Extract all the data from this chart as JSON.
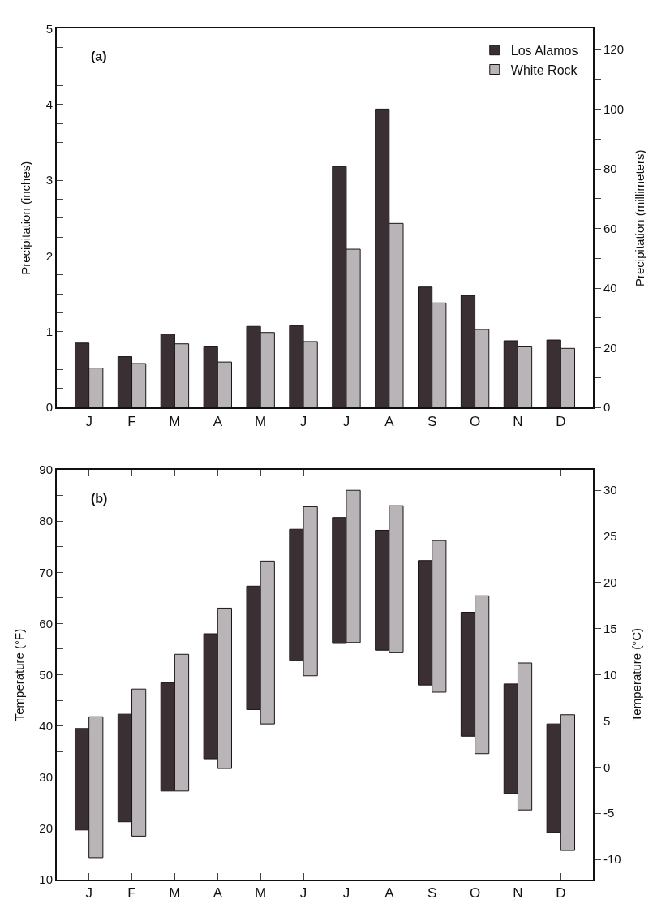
{
  "chart_data": [
    {
      "type": "bar",
      "title": "(a)",
      "ylabel": "Precipitation (inches)",
      "y2label": "Precipitation (millimeters)",
      "categories": [
        "J",
        "F",
        "M",
        "A",
        "M",
        "J",
        "J",
        "A",
        "S",
        "O",
        "N",
        "D"
      ],
      "series": [
        {
          "name": "Los Alamos",
          "color": "#3a3034",
          "values": [
            0.85,
            0.67,
            0.97,
            0.8,
            1.07,
            1.08,
            3.18,
            3.94,
            1.59,
            1.48,
            0.88,
            0.89
          ]
        },
        {
          "name": "White Rock",
          "color": "#b8b4b8",
          "values": [
            0.52,
            0.58,
            0.84,
            0.6,
            0.99,
            0.87,
            2.09,
            2.43,
            1.38,
            1.03,
            0.8,
            0.78
          ]
        }
      ],
      "ylim": [
        0,
        5
      ],
      "yticks": [
        0,
        {
          "value": 0.25,
          "label": null
        },
        {
          "value": 0.5,
          "label": null
        },
        {
          "value": 0.75,
          "label": null
        },
        1,
        {
          "value": 1.25,
          "label": null
        },
        {
          "value": 1.5,
          "label": null
        },
        {
          "value": 1.75,
          "label": null
        },
        2,
        {
          "value": 2.25,
          "label": null
        },
        {
          "value": 2.5,
          "label": null
        },
        {
          "value": 2.75,
          "label": null
        },
        3,
        {
          "value": 3.25,
          "label": null
        },
        {
          "value": 3.5,
          "label": null
        },
        {
          "value": 3.75,
          "label": null
        },
        4,
        {
          "value": 4.25,
          "label": null
        },
        {
          "value": 4.5,
          "label": null
        },
        {
          "value": 4.75,
          "label": null
        },
        5
      ],
      "y2lim": [
        0,
        127
      ],
      "y2ticks": [
        0,
        {
          "value": 10,
          "label": null
        },
        20,
        {
          "value": 30,
          "label": null
        },
        40,
        {
          "value": 50,
          "label": null
        },
        60,
        {
          "value": 70,
          "label": null
        },
        80,
        {
          "value": 90,
          "label": null
        },
        100,
        {
          "value": 110,
          "label": null
        },
        120
      ],
      "legend": "top right"
    },
    {
      "type": "bar",
      "title": "(b)",
      "ylabel": "Temperature (°F)",
      "y2label": "Temperature (°C)",
      "categories": [
        "J",
        "F",
        "M",
        "A",
        "M",
        "J",
        "J",
        "A",
        "S",
        "O",
        "N",
        "D"
      ],
      "series": [
        {
          "color": "#3a3034",
          "base": [
            19.7,
            21.3,
            27.3,
            33.6,
            43.2,
            52.8,
            56.1,
            54.8,
            48,
            38,
            26.8,
            19.2
          ],
          "values": [
            19.8,
            21.0,
            21.1,
            24.4,
            24.1,
            25.6,
            24.6,
            23.4,
            24.3,
            24.2,
            21.4,
            21.2
          ]
        },
        {
          "color": "#b8b4b8",
          "base": [
            14.3,
            18.5,
            27.3,
            31.7,
            40.4,
            49.8,
            56.3,
            54.3,
            46.6,
            34.6,
            23.6,
            15.7
          ],
          "values": [
            27.5,
            28.7,
            26.7,
            31.3,
            31.8,
            33.0,
            29.7,
            28.7,
            29.6,
            30.8,
            28.7,
            26.5
          ]
        }
      ],
      "ylim": [
        10,
        90
      ],
      "yticks": [
        10,
        {
          "value": 15,
          "label": null
        },
        20,
        {
          "value": 25,
          "label": null
        },
        30,
        {
          "value": 35,
          "label": null
        },
        40,
        {
          "value": 45,
          "label": null
        },
        50,
        {
          "value": 55,
          "label": null
        },
        60,
        {
          "value": 65,
          "label": null
        },
        70,
        {
          "value": 75,
          "label": null
        },
        80,
        {
          "value": 85,
          "label": null
        },
        90
      ],
      "y2lim": [
        -12.2,
        32.2
      ],
      "y2ticks": [
        -10,
        -5,
        0,
        5,
        10,
        15,
        20,
        25,
        30
      ],
      "legend": false
    }
  ]
}
